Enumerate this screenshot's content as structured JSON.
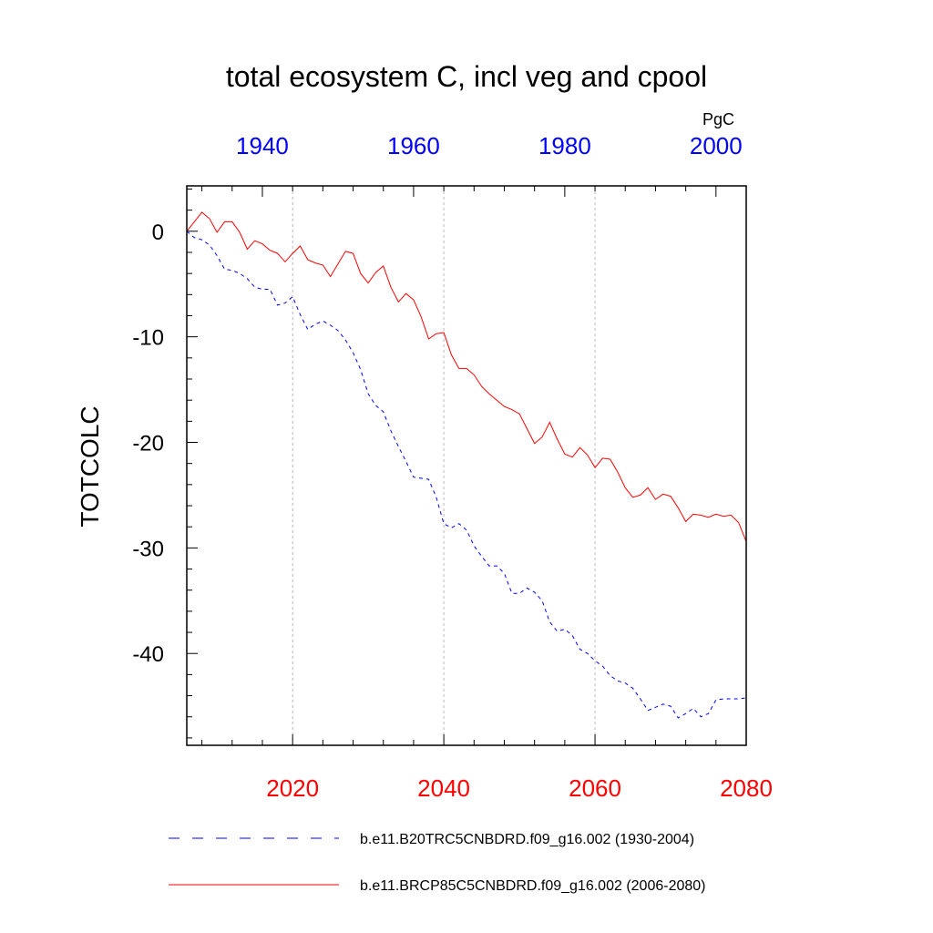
{
  "chart_data": {
    "type": "line",
    "title": "total ecosystem C, incl veg and cpool",
    "units": "PgC",
    "ylabel": "TOTCOLC",
    "ylim": [
      -48.7,
      4.3
    ],
    "yticks": [
      0,
      -10,
      -20,
      -30,
      -40
    ],
    "grid": "vertical dashed at bottom-axis major ticks",
    "bottom_axis": {
      "range": [
        2006,
        2080
      ],
      "ticks": [
        2020,
        2040,
        2060,
        2080
      ],
      "color": "#ff0000"
    },
    "top_axis": {
      "range": [
        1930,
        2004
      ],
      "ticks": [
        1940,
        1960,
        1980,
        2000
      ],
      "color": "#0000ff"
    },
    "series": [
      {
        "name": "b.e11.B20TRC5CNBDRD.f09_g16.002 (1930-2004)",
        "color": "#0000ff",
        "dash": "dashed",
        "axis": "top",
        "x": [
          1930,
          1931,
          1932,
          1933,
          1934,
          1935,
          1936,
          1937,
          1938,
          1939,
          1940,
          1941,
          1942,
          1943,
          1944,
          1945,
          1946,
          1947,
          1948,
          1949,
          1950,
          1951,
          1952,
          1953,
          1954,
          1955,
          1956,
          1957,
          1958,
          1959,
          1960,
          1961,
          1962,
          1963,
          1964,
          1965,
          1966,
          1967,
          1968,
          1969,
          1970,
          1971,
          1972,
          1973,
          1974,
          1975,
          1976,
          1977,
          1978,
          1979,
          1980,
          1981,
          1982,
          1983,
          1984,
          1985,
          1986,
          1987,
          1988,
          1989,
          1990,
          1991,
          1992,
          1993,
          1994,
          1995,
          1996,
          1997,
          1998,
          1999,
          2000,
          2001,
          2002,
          2003,
          2004
        ],
        "y": [
          0,
          -0.6,
          -0.8,
          -1.3,
          -2.3,
          -3.6,
          -3.7,
          -4.0,
          -4.5,
          -5.3,
          -5.5,
          -5.5,
          -7.0,
          -6.8,
          -6.2,
          -7.9,
          -9.3,
          -8.8,
          -8.5,
          -8.9,
          -9.4,
          -10.3,
          -11.5,
          -13.1,
          -15.4,
          -16.5,
          -17.1,
          -18.9,
          -20.4,
          -21.8,
          -23.3,
          -23.4,
          -23.5,
          -25.2,
          -27.7,
          -28.1,
          -27.7,
          -28.3,
          -29.8,
          -30.8,
          -31.7,
          -31.7,
          -32.4,
          -34.3,
          -34.3,
          -33.8,
          -34.2,
          -35.0,
          -37.0,
          -37.9,
          -37.7,
          -38.3,
          -39.6,
          -40.0,
          -40.7,
          -41.2,
          -42.1,
          -42.6,
          -42.8,
          -43.3,
          -44.3,
          -45.4,
          -45.1,
          -44.8,
          -45.0,
          -46.1,
          -45.7,
          -45.2,
          -46.0,
          -45.7,
          -44.4,
          -44.3,
          -44.3,
          -44.3,
          -44.2
        ]
      },
      {
        "name": "b.e11.BRCP85C5CNBDRD.f09_g16.002 (2006-2080)",
        "color": "#ff0000",
        "dash": "solid",
        "axis": "bottom",
        "x": [
          2006,
          2007,
          2008,
          2009,
          2010,
          2011,
          2012,
          2013,
          2014,
          2015,
          2016,
          2017,
          2018,
          2019,
          2020,
          2021,
          2022,
          2023,
          2024,
          2025,
          2026,
          2027,
          2028,
          2029,
          2030,
          2031,
          2032,
          2033,
          2034,
          2035,
          2036,
          2037,
          2038,
          2039,
          2040,
          2041,
          2042,
          2043,
          2044,
          2045,
          2046,
          2047,
          2048,
          2049,
          2050,
          2051,
          2052,
          2053,
          2054,
          2055,
          2056,
          2057,
          2058,
          2059,
          2060,
          2061,
          2062,
          2063,
          2064,
          2065,
          2066,
          2067,
          2068,
          2069,
          2070,
          2071,
          2072,
          2073,
          2074,
          2075,
          2076,
          2077,
          2078,
          2079,
          2080
        ],
        "y": [
          0,
          0.9,
          1.8,
          1.2,
          -0.1,
          0.9,
          0.9,
          -0.1,
          -1.7,
          -0.9,
          -1.2,
          -1.8,
          -2.1,
          -2.9,
          -2.1,
          -1.4,
          -2.7,
          -3.0,
          -3.2,
          -4.3,
          -3.1,
          -1.9,
          -2.1,
          -4.0,
          -4.9,
          -3.9,
          -3.3,
          -5.3,
          -6.7,
          -5.9,
          -6.5,
          -8.1,
          -10.2,
          -9.7,
          -9.6,
          -11.7,
          -13.0,
          -13.0,
          -13.6,
          -14.7,
          -15.4,
          -16.0,
          -16.6,
          -16.9,
          -17.3,
          -18.7,
          -20.1,
          -19.5,
          -18.1,
          -19.7,
          -21.1,
          -21.4,
          -20.5,
          -21.2,
          -22.4,
          -21.5,
          -21.6,
          -22.8,
          -24.3,
          -25.2,
          -25.0,
          -24.3,
          -25.4,
          -24.9,
          -25.1,
          -26.2,
          -27.5,
          -26.8,
          -26.9,
          -27.1,
          -26.8,
          -27.0,
          -26.9,
          -27.6,
          -29.4
        ]
      }
    ]
  }
}
